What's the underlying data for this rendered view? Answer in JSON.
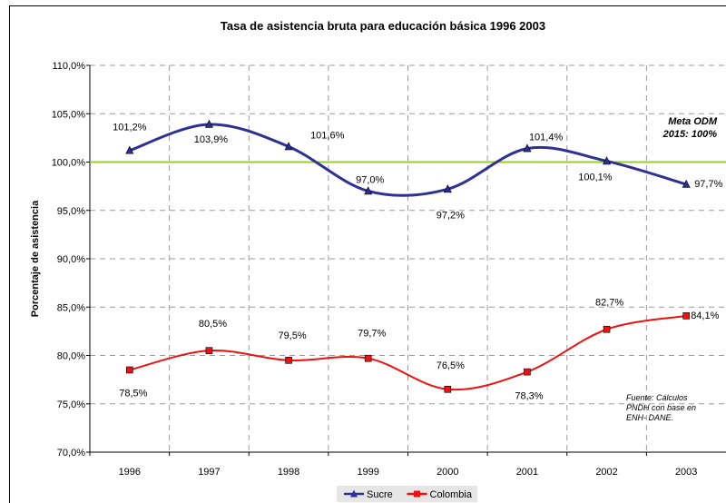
{
  "chart_data": {
    "type": "line",
    "title": "Tasa de asistencia bruta para educación básica  1996 2003",
    "ylabel": "Porcentaje de asistencia",
    "xlabel": "",
    "categories": [
      "1996",
      "1997",
      "1998",
      "1999",
      "2000",
      "2001",
      "2002",
      "2003"
    ],
    "ylim": [
      70,
      110
    ],
    "yticks": [
      70,
      75,
      80,
      85,
      90,
      95,
      100,
      105,
      110
    ],
    "ytick_labels": [
      "70,0%",
      "75,0%",
      "80,0%",
      "85,0%",
      "90,0%",
      "95,0%",
      "100,0%",
      "105,0%",
      "110,0%"
    ],
    "grid": true,
    "legend_position": "bottom",
    "series": [
      {
        "name": "Sucre",
        "color": "#2e3192",
        "marker": "triangle",
        "values": [
          101.2,
          103.9,
          101.6,
          97.0,
          97.2,
          101.4,
          100.1,
          97.7
        ],
        "labels": [
          "101,2%",
          "103,9%",
          "101,6%",
          "97,0%",
          "97,2%",
          "101,4%",
          "100,1%",
          "97,7%"
        ]
      },
      {
        "name": "Colombia",
        "color": "#ee1111",
        "marker": "square",
        "values": [
          78.5,
          80.5,
          79.5,
          79.7,
          76.5,
          78.3,
          82.7,
          84.1
        ],
        "labels": [
          "78,5%",
          "80,5%",
          "79,5%",
          "79,7%",
          "76,5%",
          "78,3%",
          "82,7%",
          "84,1%"
        ]
      }
    ],
    "reference_line": {
      "value": 100,
      "color": "#99cc33",
      "label_line1": "Meta ODM",
      "label_line2": "2015: 100%"
    },
    "source_note": [
      "Fuente: Cálculos",
      "PNDH con base en",
      "ENH- DANE."
    ]
  }
}
